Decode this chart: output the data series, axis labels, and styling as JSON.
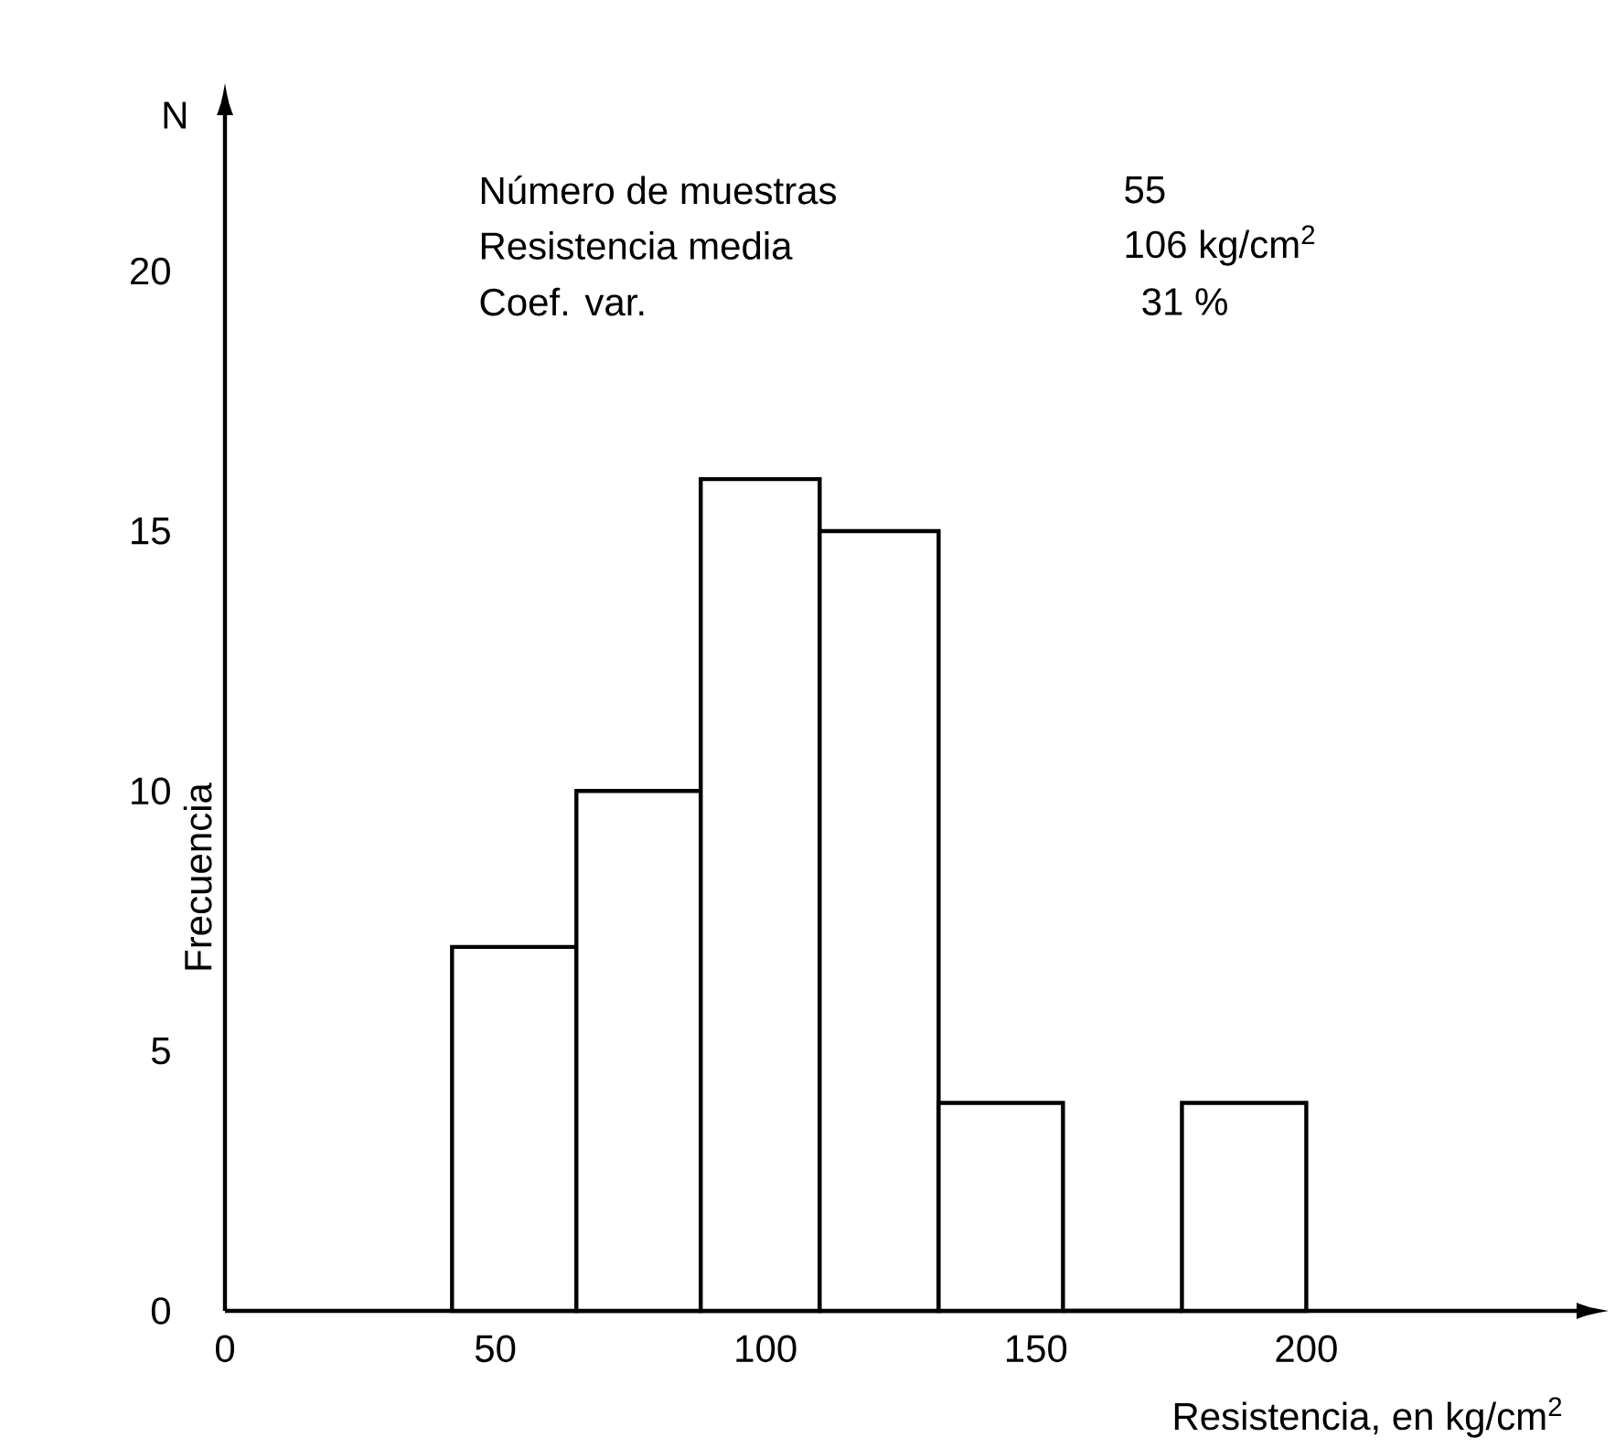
{
  "chart_data": {
    "type": "histogram",
    "xlabel": "Resistencia, en kg/cm$^{2}$",
    "ylabel": "Frecuencia",
    "bins": [
      42,
      65,
      88,
      110,
      132,
      155,
      177,
      200
    ],
    "values": [
      7,
      10,
      16,
      15,
      4,
      0,
      4
    ],
    "color": "#ffffff",
    "xlim": [
      0,
      250
    ],
    "ylim": [
      0,
      23
    ],
    "xticks": [
      0,
      50,
      100,
      150,
      200
    ],
    "yticks": [
      0,
      5,
      10,
      15,
      20
    ],
    "grid": false,
    "annotations": [
      "N",
      "Número de muestras",
      "55",
      "Resistencia media",
      "106 kg/cm$^{2}$",
      "Coef. var.",
      "31 %"
    ]
  }
}
